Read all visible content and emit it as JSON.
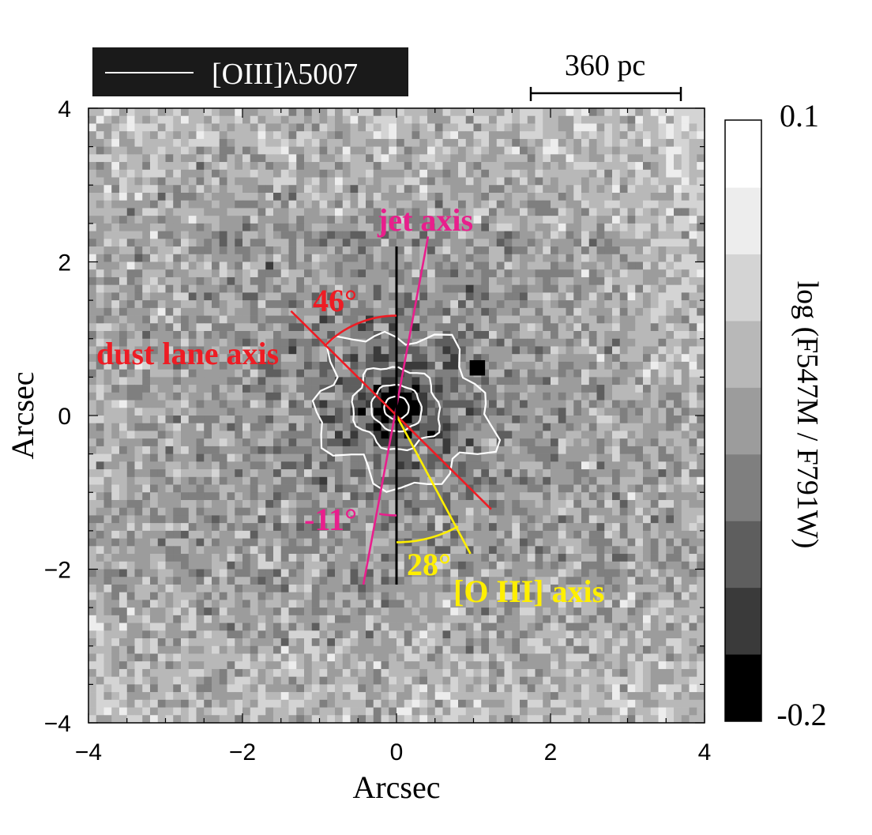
{
  "chart_data": {
    "type": "heatmap",
    "title": "",
    "xlabel": "Arcsec",
    "ylabel": "Arcsec",
    "xlim": [
      -4,
      4
    ],
    "ylim": [
      -4,
      4
    ],
    "x_ticks": [
      -4,
      -2,
      0,
      2,
      4
    ],
    "y_ticks": [
      -4,
      -2,
      0,
      2,
      4
    ],
    "x_tick_labels": [
      "−4",
      "−2",
      "0",
      "2",
      "4"
    ],
    "y_tick_labels": [
      "−4",
      "−2",
      "0",
      "2",
      "4"
    ],
    "grid": false,
    "colorbar": {
      "label": "log (F547M / F791W)",
      "max_label": "0.1",
      "min_label": "-0.2",
      "range": [
        -0.2,
        0.1
      ],
      "levels": 8,
      "colors": [
        "#000000",
        "#3a3a3a",
        "#5e5e5e",
        "#7f7f7f",
        "#9c9c9c",
        "#b8b8b8",
        "#d4d4d4",
        "#ededed"
      ]
    },
    "legend": {
      "text": "[OIII]λ5007",
      "placement": "top-left",
      "background": "#1a1a1a",
      "line_color": "#ffffff"
    },
    "scale_bar": {
      "label": "360 pc",
      "x_range_arcsec": [
        1.75,
        3.75
      ]
    },
    "contours": {
      "label": "[OIII]λ5007",
      "color": "#ffffff",
      "center": [
        0.0,
        0.1
      ],
      "levels": 4
    },
    "annotations": [
      {
        "label": "jet axis",
        "type": "line",
        "color": "#e81f8c",
        "endpoints": [
          [
            -0.43,
            -2.2
          ],
          [
            0.41,
            2.33
          ]
        ]
      },
      {
        "label": "dust lane axis",
        "type": "line",
        "color": "#ee1c24",
        "endpoints": [
          [
            -1.37,
            1.36
          ],
          [
            1.23,
            -1.22
          ]
        ]
      },
      {
        "label": "[O III] axis",
        "type": "line",
        "color": "#ffef00",
        "endpoints": [
          [
            0.0,
            0.0
          ],
          [
            0.96,
            -1.8
          ]
        ]
      },
      {
        "label": "reference axis",
        "type": "line",
        "color": "#000000",
        "endpoints": [
          [
            0.0,
            -2.2
          ],
          [
            0.0,
            2.2
          ]
        ]
      },
      {
        "label": "46°",
        "type": "angle",
        "color": "#ee1c24",
        "from_deg": 90,
        "to_deg": 136,
        "radius_arcsec": 1.3
      },
      {
        "label": "-11°",
        "type": "angle",
        "color": "#e81f8c",
        "from_deg": 260,
        "to_deg": 270,
        "radius_arcsec": 1.3
      },
      {
        "label": "28°",
        "type": "angle",
        "color": "#ffef00",
        "from_deg": 270,
        "to_deg": 299,
        "radius_arcsec": 1.65
      }
    ],
    "feature_colors": {
      "jet": "#e81f8c",
      "dust": "#ee1c24",
      "oiii": "#ffef00"
    }
  }
}
